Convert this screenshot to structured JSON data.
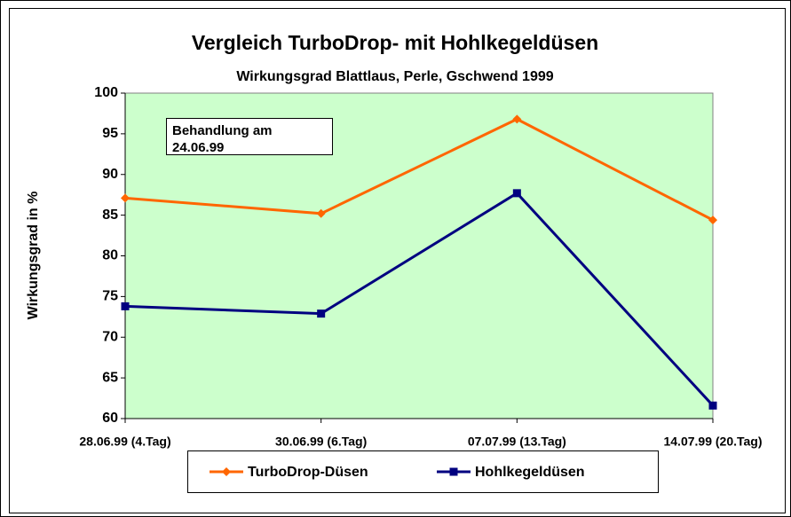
{
  "chart_data": {
    "type": "line",
    "title": "Vergleich TurboDrop- mit Hohlkegeldüsen",
    "subtitle": "Wirkungsgrad Blattlaus, Perle, Gschwend 1999",
    "y_label": "Wirkungsgrad in %",
    "annotation": "Behandlung am 24.06.99",
    "categories": [
      "28.06.99 (4.Tag)",
      "30.06.99 (6.Tag)",
      "07.07.99 (13.Tag)",
      "14.07.99 (20.Tag)"
    ],
    "series": [
      {
        "name": "TurboDrop-Düsen",
        "color": "#ff6600",
        "marker": "diamond",
        "values": [
          87.1,
          85.2,
          96.8,
          84.4
        ]
      },
      {
        "name": "Hohlkegeldüsen",
        "color": "#000080",
        "marker": "square",
        "values": [
          73.8,
          72.9,
          87.7,
          61.6
        ]
      }
    ],
    "ylim": [
      60,
      100
    ],
    "yticks": [
      60,
      65,
      70,
      75,
      80,
      85,
      90,
      95,
      100
    ],
    "plot_background": "#ccffcc",
    "legend": "bottom"
  }
}
